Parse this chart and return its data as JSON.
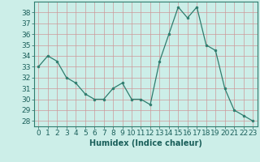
{
  "x": [
    0,
    1,
    2,
    3,
    4,
    5,
    6,
    7,
    8,
    9,
    10,
    11,
    12,
    13,
    14,
    15,
    16,
    17,
    18,
    19,
    20,
    21,
    22,
    23
  ],
  "y": [
    33,
    34,
    33.5,
    32,
    31.5,
    30.5,
    30,
    30,
    31,
    31.5,
    30,
    30,
    29.5,
    33.5,
    36,
    38.5,
    37.5,
    38.5,
    35,
    34.5,
    31,
    29,
    28.5,
    28
  ],
  "line_color": "#2e7d6e",
  "marker_color": "#2e7d6e",
  "bg_color": "#cceee8",
  "grid_color": "#cc9999",
  "xlabel": "Humidex (Indice chaleur)",
  "ylabel_ticks": [
    28,
    29,
    30,
    31,
    32,
    33,
    34,
    35,
    36,
    37,
    38
  ],
  "ylim": [
    27.5,
    39.0
  ],
  "xlim": [
    -0.5,
    23.5
  ],
  "xlabel_fontsize": 7,
  "tick_fontsize": 6.5
}
